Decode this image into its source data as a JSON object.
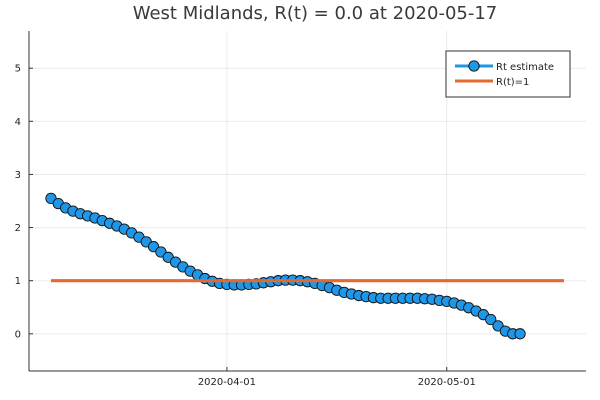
{
  "chart_data": {
    "type": "line",
    "title": "West Midlands, R(t) = 0.0 at 2020-05-17",
    "xlabel": "",
    "ylabel": "",
    "x_start": "2020-03-08",
    "x_end": "2020-05-17",
    "xlim": [
      "2020-03-05",
      "2020-05-20"
    ],
    "ylim": [
      -0.7,
      5.7
    ],
    "xticks": [
      {
        "date": "2020-04-01",
        "label": "2020-04-01"
      },
      {
        "date": "2020-05-01",
        "label": "2020-05-01"
      }
    ],
    "yticks": [
      0,
      1,
      2,
      3,
      4,
      5
    ],
    "grid": true,
    "legend_position": "top-right",
    "series": [
      {
        "name": "Rt estimate",
        "color": "#1f97e8",
        "marker": "circle",
        "values": [
          2.55,
          2.45,
          2.37,
          2.31,
          2.26,
          2.22,
          2.18,
          2.13,
          2.08,
          2.03,
          1.97,
          1.9,
          1.82,
          1.73,
          1.64,
          1.54,
          1.44,
          1.35,
          1.26,
          1.18,
          1.11,
          1.04,
          0.99,
          0.95,
          0.93,
          0.92,
          0.92,
          0.93,
          0.94,
          0.96,
          0.98,
          1.0,
          1.01,
          1.01,
          1.0,
          0.98,
          0.95,
          0.91,
          0.87,
          0.82,
          0.78,
          0.75,
          0.72,
          0.7,
          0.68,
          0.67,
          0.67,
          0.67,
          0.67,
          0.67,
          0.67,
          0.66,
          0.65,
          0.63,
          0.61,
          0.58,
          0.54,
          0.49,
          0.43,
          0.36,
          0.27,
          0.15,
          0.05,
          0.0,
          0.0
        ]
      },
      {
        "name": "R(t)=1",
        "color": "#e4692f",
        "marker": "none",
        "constant": 1.0
      }
    ]
  }
}
